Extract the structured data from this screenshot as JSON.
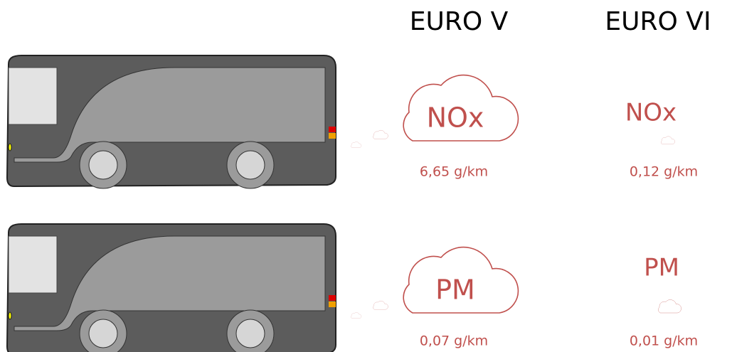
{
  "header": {
    "columns": [
      "EURO V",
      "EURO VI"
    ]
  },
  "rows": [
    {
      "pollutant": "NOx",
      "values": [
        "6,65 g/km",
        "0,12 g/km"
      ]
    },
    {
      "pollutant": "PM",
      "values": [
        "0,07 g/km",
        "0,01 g/km"
      ]
    }
  ]
}
